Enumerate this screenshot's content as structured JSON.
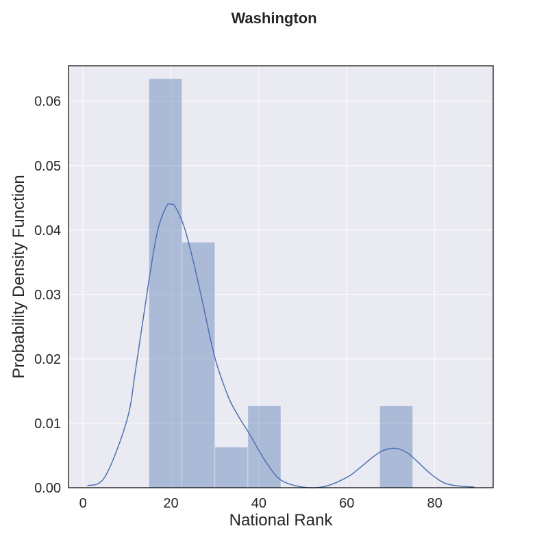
{
  "chart_data": {
    "type": "bar",
    "title": "Washington",
    "xlabel": "National Rank",
    "ylabel": "Probability Density Function",
    "xlim": [
      -3.3,
      93.3
    ],
    "ylim": [
      0,
      0.0655
    ],
    "x_ticks": [
      "0",
      "20",
      "40",
      "60",
      "80"
    ],
    "x_tick_values": [
      0,
      20,
      40,
      60,
      80
    ],
    "y_ticks": [
      "0.00",
      "0.01",
      "0.02",
      "0.03",
      "0.04",
      "0.05",
      "0.06"
    ],
    "y_tick_values": [
      0,
      0.01,
      0.02,
      0.03,
      0.04,
      0.05,
      0.06
    ],
    "grid": true,
    "histogram": {
      "bin_edges": [
        15,
        22.5,
        30,
        37.5,
        45,
        52.5,
        60,
        67.5,
        75
      ],
      "densities": [
        0.0635,
        0.0381,
        0.0063,
        0.0127,
        0,
        0,
        0,
        0.0127
      ]
    },
    "kde": {
      "x": [
        1,
        5,
        10,
        12,
        15,
        17,
        19,
        20,
        21,
        23,
        25,
        27,
        30,
        33,
        35,
        38,
        40,
        42,
        45,
        50,
        55,
        60,
        63,
        66,
        68,
        70,
        71,
        72,
        74,
        76,
        79,
        82,
        85,
        89
      ],
      "y": [
        0.0003,
        0.0017,
        0.0105,
        0.0185,
        0.0322,
        0.04,
        0.0437,
        0.044,
        0.0436,
        0.0405,
        0.0354,
        0.0294,
        0.0202,
        0.0142,
        0.0115,
        0.0082,
        0.0058,
        0.0036,
        0.0012,
        0.0001,
        0.0002,
        0.0016,
        0.0031,
        0.0048,
        0.0057,
        0.0061,
        0.0061,
        0.006,
        0.0053,
        0.0041,
        0.0022,
        0.0008,
        0.0003,
        0.0001
      ]
    },
    "colors": {
      "background": "#eaeaf2",
      "grid": "#ffffff",
      "bar_fill": "#4c72b0",
      "bar_alpha": 0.4,
      "kde_line": "#4c72b0",
      "frame": "#000000"
    }
  }
}
